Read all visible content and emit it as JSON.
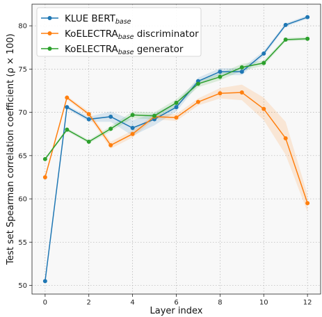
{
  "chart_data": {
    "type": "line",
    "xlabel": "Layer index",
    "ylabel": "Test set Spearman correlation coefficient (ρ × 100)",
    "xlim": [
      -0.6,
      12.6
    ],
    "ylim": [
      49,
      82.5
    ],
    "xticks": [
      0,
      2,
      4,
      6,
      8,
      10,
      12
    ],
    "yticks": [
      50,
      55,
      60,
      65,
      70,
      75,
      80
    ],
    "grid": true,
    "legend_position": "top-left",
    "x": [
      0,
      1,
      2,
      3,
      4,
      5,
      6,
      7,
      8,
      9,
      10,
      11,
      12
    ],
    "series": [
      {
        "name": "KLUE BERT",
        "name_sub": "base",
        "name_suffix": "",
        "color": "#1f77b4",
        "values": [
          50.5,
          70.6,
          69.2,
          69.5,
          68.2,
          69.2,
          70.6,
          73.6,
          74.7,
          74.7,
          76.8,
          80.1,
          81.0
        ],
        "band": [
          0.15,
          0.2,
          0.3,
          0.6,
          0.9,
          0.7,
          0.5,
          0.4,
          0.4,
          0.4,
          0.3,
          0.2,
          0.2
        ]
      },
      {
        "name": "KoELECTRA",
        "name_sub": "base",
        "name_suffix": " discriminator",
        "color": "#ff7f0e",
        "values": [
          62.5,
          71.7,
          69.8,
          66.2,
          67.5,
          69.5,
          69.4,
          71.2,
          72.2,
          72.3,
          70.4,
          67.0,
          59.5
        ],
        "band": [
          0.2,
          0.2,
          0.3,
          0.4,
          0.4,
          0.3,
          0.4,
          0.4,
          0.6,
          0.9,
          1.3,
          1.9,
          1.0
        ]
      },
      {
        "name": "KoELECTRA",
        "name_sub": "base",
        "name_suffix": " generator",
        "color": "#2ca02c",
        "values": [
          64.6,
          68.0,
          66.6,
          68.1,
          69.7,
          69.6,
          71.1,
          73.3,
          74.1,
          75.2,
          75.7,
          78.4,
          78.5
        ],
        "band": [
          0.15,
          0.2,
          0.2,
          0.3,
          0.4,
          0.4,
          0.4,
          0.4,
          0.4,
          0.4,
          0.3,
          0.2,
          0.2
        ]
      }
    ]
  }
}
